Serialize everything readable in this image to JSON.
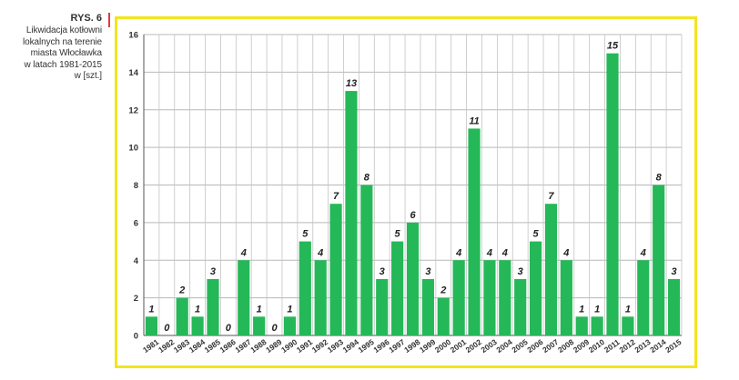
{
  "caption": {
    "label": "RYS. 6",
    "lines": [
      "Likwidacja kotłowni",
      "lokalnych na terenie",
      "miasta Włocławka",
      "w latach 1981-2015",
      "w [szt.]"
    ]
  },
  "colors": {
    "bar": "#25b858",
    "frame": "#f2e51c",
    "accent_rule": "#e03a3e"
  },
  "chart_data": {
    "type": "bar",
    "title": "",
    "xlabel": "",
    "ylabel": "",
    "ylim": [
      0,
      16
    ],
    "yticks": [
      0,
      2,
      4,
      6,
      8,
      10,
      12,
      14,
      16
    ],
    "grid": true,
    "legend": "none",
    "categories": [
      "1981",
      "1982",
      "1983",
      "1984",
      "1985",
      "1986",
      "1987",
      "1988",
      "1989",
      "1990",
      "1991",
      "1992",
      "1993",
      "1994",
      "1995",
      "1996",
      "1997",
      "1998",
      "1999",
      "2000",
      "2001",
      "2002",
      "2003",
      "2004",
      "2005",
      "2006",
      "2007",
      "2008",
      "2009",
      "2010",
      "2011",
      "2012",
      "2013",
      "2014",
      "2015"
    ],
    "values": [
      1,
      0,
      2,
      1,
      3,
      0,
      4,
      1,
      0,
      1,
      5,
      4,
      7,
      13,
      8,
      3,
      5,
      6,
      3,
      2,
      4,
      11,
      4,
      4,
      3,
      5,
      7,
      4,
      1,
      1,
      15,
      1,
      4,
      8,
      3
    ]
  }
}
